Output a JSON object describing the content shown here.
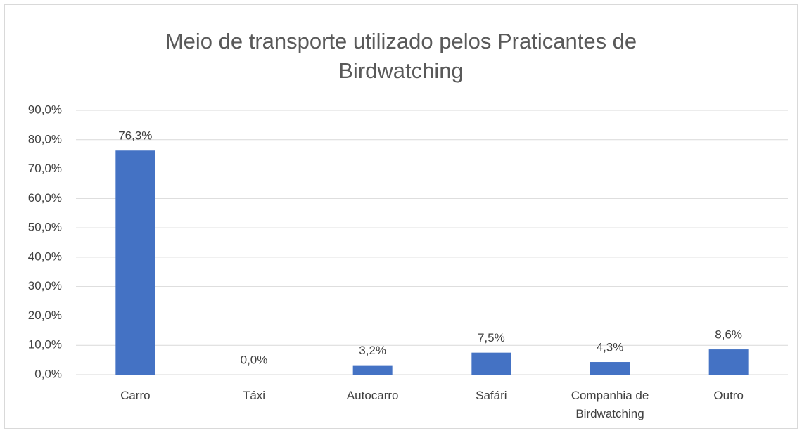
{
  "chart_data": {
    "type": "bar",
    "title": "Meio de transporte utilizado pelos Praticantes de Birdwatching",
    "categories": [
      "Carro",
      "Táxi",
      "Autocarro",
      "Safári",
      "Companhia de Birdwatching",
      "Outro"
    ],
    "values": [
      76.3,
      0,
      3.2,
      7.5,
      4.3,
      8.6
    ],
    "value_labels": [
      "76,3%",
      "0,0%",
      "3,2%",
      "7,5%",
      "4,3%",
      "8,6%"
    ],
    "color": "#4472c4",
    "ylim": [
      0,
      90
    ],
    "yticks": [
      {
        "value": 0,
        "label": "0,0%"
      },
      {
        "value": 10,
        "label": "10,0%"
      },
      {
        "value": 20,
        "label": "20,0%"
      },
      {
        "value": 30,
        "label": "30,0%"
      },
      {
        "value": 40,
        "label": "40,0%"
      },
      {
        "value": 50,
        "label": "50,0%"
      },
      {
        "value": 60,
        "label": "60,0%"
      },
      {
        "value": 70,
        "label": "70,0%"
      },
      {
        "value": 80,
        "label": "80,0%"
      },
      {
        "value": 90,
        "label": "90,0%"
      }
    ],
    "grid": true
  }
}
